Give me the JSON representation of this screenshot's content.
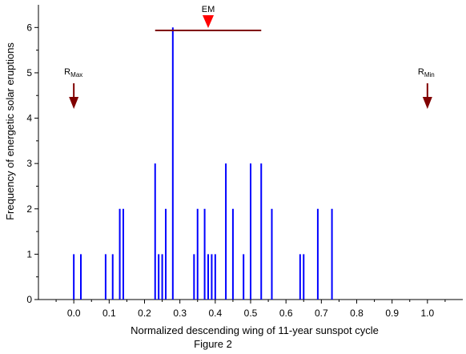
{
  "chart_data": {
    "type": "bar",
    "xlabel": "Normalized descending wing of 11-year sunspot cycle",
    "ylabel": "Frequency of energetic solar eruptions",
    "caption": "Figure 2",
    "xlim": [
      -0.1,
      1.1
    ],
    "ylim": [
      0,
      6.5
    ],
    "x_ticks": [
      "0.0",
      "0.1",
      "0.2",
      "0.3",
      "0.4",
      "0.5",
      "0.6",
      "0.7",
      "0.8",
      "0.9",
      "1.0"
    ],
    "y_ticks": [
      "0",
      "1",
      "2",
      "3",
      "4",
      "5",
      "6"
    ],
    "grid": false,
    "bar_color": "#0000ff",
    "annotation_color": "#800000",
    "marker_color": "#ff0000",
    "bars": [
      {
        "x": 0.0,
        "y": 1
      },
      {
        "x": 0.02,
        "y": 1
      },
      {
        "x": 0.09,
        "y": 1
      },
      {
        "x": 0.11,
        "y": 1
      },
      {
        "x": 0.13,
        "y": 2
      },
      {
        "x": 0.14,
        "y": 2
      },
      {
        "x": 0.23,
        "y": 3
      },
      {
        "x": 0.24,
        "y": 1
      },
      {
        "x": 0.25,
        "y": 1
      },
      {
        "x": 0.26,
        "y": 2
      },
      {
        "x": 0.28,
        "y": 6
      },
      {
        "x": 0.34,
        "y": 1
      },
      {
        "x": 0.35,
        "y": 2
      },
      {
        "x": 0.37,
        "y": 2
      },
      {
        "x": 0.38,
        "y": 1
      },
      {
        "x": 0.39,
        "y": 1
      },
      {
        "x": 0.4,
        "y": 1
      },
      {
        "x": 0.43,
        "y": 3
      },
      {
        "x": 0.45,
        "y": 2
      },
      {
        "x": 0.48,
        "y": 1
      },
      {
        "x": 0.5,
        "y": 3
      },
      {
        "x": 0.53,
        "y": 3
      },
      {
        "x": 0.56,
        "y": 2
      },
      {
        "x": 0.64,
        "y": 1
      },
      {
        "x": 0.65,
        "y": 1
      },
      {
        "x": 0.69,
        "y": 2
      },
      {
        "x": 0.73,
        "y": 2
      }
    ],
    "annotations": {
      "em": {
        "label": "EM",
        "x": 0.38,
        "range": [
          0.23,
          0.53
        ]
      },
      "rmax": {
        "label": "R",
        "sub": "Max",
        "x": 0.0
      },
      "rmin": {
        "label": "R",
        "sub": "Min",
        "x": 1.0
      }
    }
  }
}
